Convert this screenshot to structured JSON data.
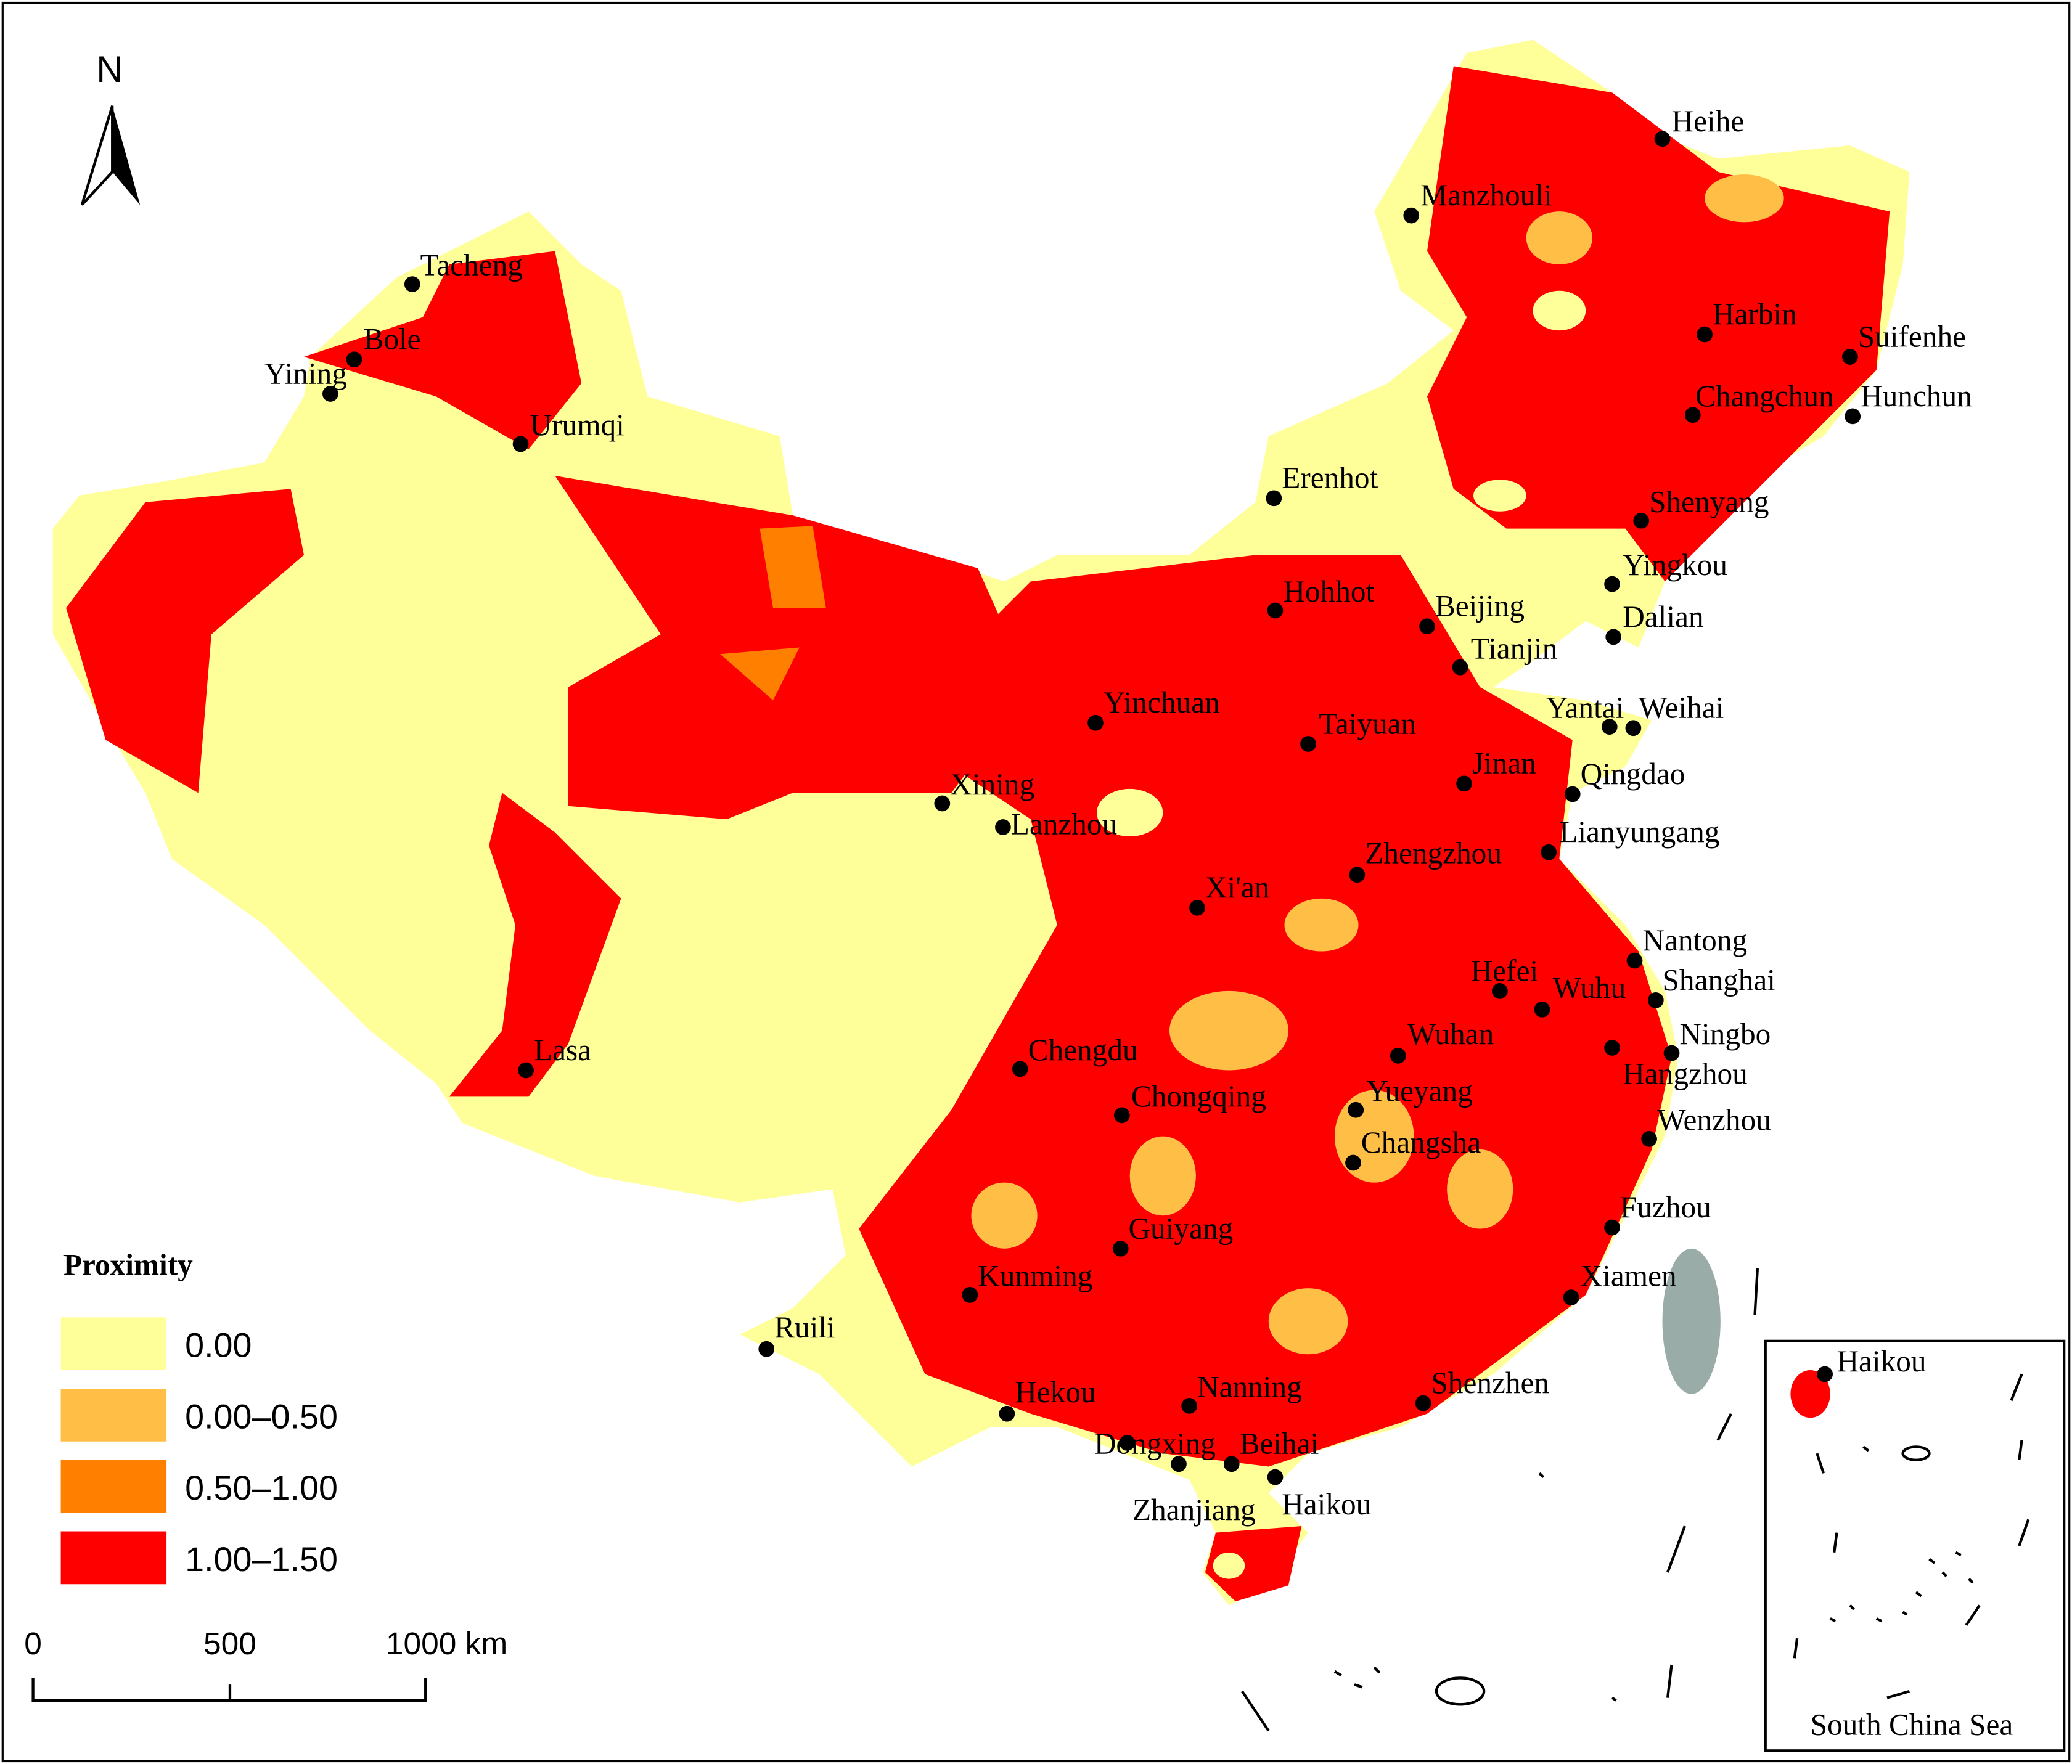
{
  "map": {
    "north": "N",
    "legend": {
      "title": "Proximity",
      "items": [
        {
          "label": "0.00",
          "color": "#ffff99"
        },
        {
          "label": "0.00–0.50",
          "color": "#ffbf47"
        },
        {
          "label": "0.50–1.00",
          "color": "#ff8000"
        },
        {
          "label": "1.00–1.50",
          "color": "#ff0000"
        }
      ]
    },
    "scale_bar": {
      "labels": [
        "0",
        "500",
        "1000 km"
      ]
    },
    "cities": [
      "Heihe",
      "Manzhouli",
      "Tacheng",
      "Bole",
      "Yining",
      "Urumqi",
      "Harbin",
      "Suifenhe",
      "Changchun",
      "Hunchun",
      "Erenhot",
      "Shenyang",
      "Yingkou",
      "Dalian",
      "Hohhot",
      "Beijing",
      "Tianjin",
      "Yinchuan",
      "Taiyuan",
      "Yantai",
      "Weihai",
      "Jinan",
      "Qingdao",
      "Xining",
      "Lanzhou",
      "Lianyungang",
      "Zhengzhou",
      "Xi'an",
      "Nantong",
      "Hefei",
      "Wuhu",
      "Shanghai",
      "Wuhan",
      "Ningbo",
      "Hangzhou",
      "Lasa",
      "Chengdu",
      "Yueyang",
      "Chongqing",
      "Changsha",
      "Wenzhou",
      "Fuzhou",
      "Guiyang",
      "Xiamen",
      "Kunming",
      "Ruili",
      "Shenzhen",
      "Nanning",
      "Hekou",
      "Dongxing",
      "Beihai",
      "Zhanjiang",
      "Haikou"
    ],
    "inset": {
      "label": "South China Sea",
      "city": "Haikou"
    }
  }
}
